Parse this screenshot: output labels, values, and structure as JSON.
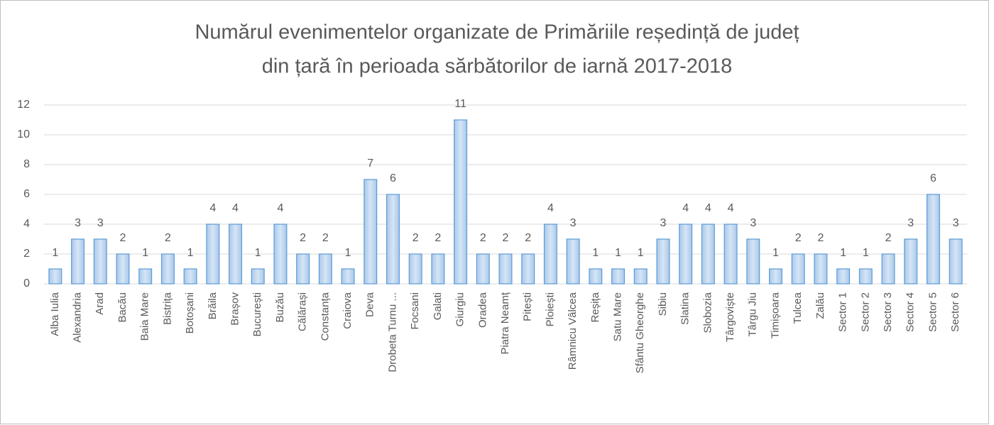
{
  "chart_data": {
    "type": "bar",
    "title": [
      "Numărul evenimentelor organizate de Primăriile reședință de județ",
      "din țară în perioada sărbătorilor de iarnă 2017-2018"
    ],
    "categories": [
      "Alba Iulia",
      "Alexandria",
      "Arad",
      "Bacău",
      "Baia Mare",
      "Bistrița",
      "Botoșani",
      "Brăila",
      "Brașov",
      "București",
      "Buzău",
      "Călărași",
      "Constanța",
      "Craiova",
      "Deva",
      "Drobeta Turnu ...",
      "Focsani",
      "Galati",
      "Giurgiu",
      "Oradea",
      "Piatra Neamț",
      "Pitești",
      "Ploiești",
      "Râmnicu Vâlcea",
      "Reșița",
      "Satu Mare",
      "Sfântu Gheorghe",
      "Sibiu",
      "Slatina",
      "Slobozia",
      "Târgoviște",
      "Târgu Jiu",
      "Timișoara",
      "Tulcea",
      "Zalău",
      "Sector 1",
      "Sector 2",
      "Sector 3",
      "Sector 4",
      "Sector 5",
      "Sector 6"
    ],
    "values": [
      1,
      3,
      3,
      2,
      1,
      2,
      1,
      4,
      4,
      1,
      4,
      2,
      2,
      1,
      7,
      6,
      2,
      2,
      11,
      2,
      2,
      2,
      4,
      3,
      1,
      1,
      1,
      3,
      4,
      4,
      4,
      3,
      1,
      2,
      2,
      1,
      1,
      2,
      3,
      6,
      3
    ],
    "color": "#5b9bd5",
    "ylim": [
      0,
      12
    ],
    "yticks": [
      0,
      2,
      4,
      6,
      8,
      10,
      12
    ],
    "grid": true
  }
}
